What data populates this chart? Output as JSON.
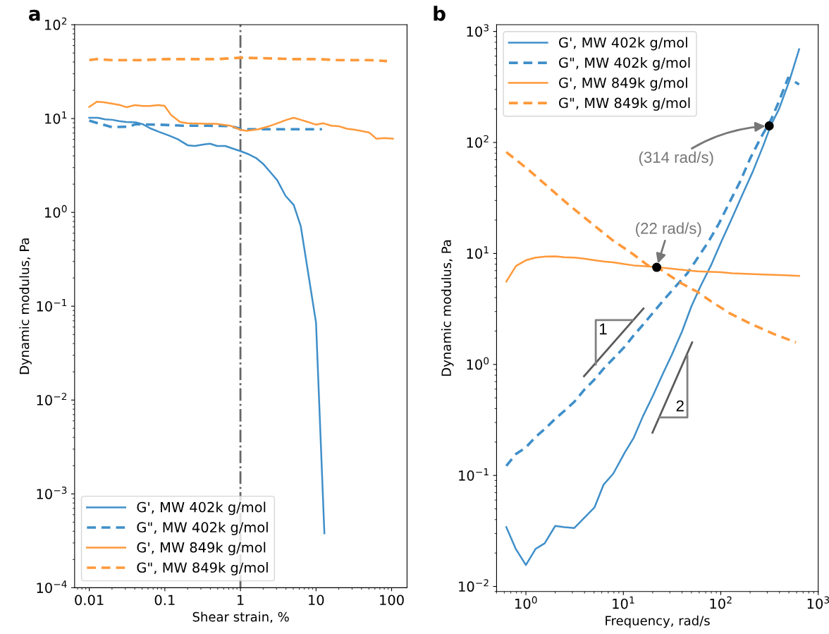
{
  "chart_data": [
    {
      "type": "line",
      "title": "a",
      "xlabel": "Shear strain, %",
      "ylabel": "Dynamic modulus, Pa",
      "log": "xy",
      "legend": "bottom left",
      "grid": false,
      "xlim": [
        0.0064,
        160
      ],
      "xticks": [
        0.01,
        0.1,
        1,
        10,
        100
      ],
      "ylim": [
        0.0001,
        100
      ],
      "yticks": [
        {
          "value": 0.0001,
          "label": "10$^{−4}$"
        },
        {
          "value": 0.001,
          "label": "10$^{−3}$"
        },
        {
          "value": 0.01,
          "label": "10$^{−2}$"
        },
        {
          "value": 0.1,
          "label": "10$^{−1}$"
        },
        {
          "value": 1,
          "label": "10$^{0}$"
        },
        {
          "value": 10,
          "label": "10$^{1}$"
        },
        {
          "value": 100,
          "label": "10$^{2}$"
        }
      ],
      "ref_lines": [
        {
          "axis": "x",
          "value": 1,
          "color": "#666666",
          "line_style": "dashdot"
        }
      ],
      "series": [
        {
          "name": "G', MW 402k g/mol",
          "color": "#3f8fc9",
          "line_style": "solid",
          "x": [
            0.01,
            0.013,
            0.0162,
            0.0201,
            0.0249,
            0.0309,
            0.0412,
            0.0511,
            0.0634,
            0.0845,
            0.113,
            0.15,
            0.2,
            0.248,
            0.331,
            0.396,
            0.491,
            0.631,
            0.783,
            1.0,
            1.25,
            1.61,
            1.99,
            2.47,
            3.07,
            3.95,
            5.07,
            6.29,
            10.0,
            12.9
          ],
          "values": [
            10.2,
            10.2,
            9.8,
            9.7,
            9.4,
            9.2,
            9.1,
            8.7,
            7.9,
            7.2,
            6.6,
            6.0,
            5.2,
            5.1,
            5.3,
            5.4,
            5.1,
            5.1,
            4.8,
            4.5,
            4.2,
            3.8,
            3.3,
            2.7,
            2.2,
            1.5,
            1.2,
            0.71,
            0.067,
            0.00038
          ]
        },
        {
          "name": "G\", MW 402k g/mol",
          "color": "#3f8fc9",
          "line_style": "dashed",
          "x": [
            0.01,
            0.013,
            0.0201,
            0.0332,
            0.0412,
            0.0845,
            0.173,
            0.356,
            0.729,
            1.0,
            1.21,
            3.07,
            12.0
          ],
          "values": [
            9.5,
            8.9,
            8.1,
            8.2,
            8.7,
            8.6,
            8.4,
            8.4,
            8.3,
            7.8,
            7.7,
            7.7,
            7.7
          ]
        },
        {
          "name": "G', MW 849k g/mol",
          "color": "#ff993a",
          "line_style": "solid",
          "x": [
            0.01,
            0.0126,
            0.0156,
            0.0201,
            0.0249,
            0.0313,
            0.0397,
            0.0511,
            0.0634,
            0.0815,
            0.0989,
            0.121,
            0.159,
            0.2,
            0.356,
            0.474,
            0.729,
            1.0,
            1.21,
            1.73,
            2.3,
            3.07,
            4.09,
            5.07,
            6.29,
            7.8,
            10.0,
            12.5,
            16.0,
            19.9,
            25.5,
            32.8,
            50.5,
            62.7,
            80.6,
            104
          ],
          "values": [
            13.3,
            15.1,
            14.9,
            14.4,
            14.0,
            13.2,
            13.9,
            13.6,
            13.6,
            13.9,
            13.7,
            10.9,
            9.2,
            8.9,
            8.8,
            8.8,
            8.4,
            7.6,
            7.4,
            7.7,
            8.2,
            8.9,
            9.7,
            10.2,
            9.7,
            9.2,
            8.6,
            8.9,
            8.4,
            8.3,
            7.8,
            7.6,
            7.1,
            6.1,
            6.2,
            6.1
          ]
        },
        {
          "name": "G\", MW 849k g/mol",
          "color": "#ff993a",
          "line_style": "dashed",
          "x": [
            0.01,
            0.0125,
            0.02,
            0.05,
            0.1,
            0.2,
            0.5,
            0.8,
            1.0,
            2,
            5,
            10,
            20,
            50,
            87
          ],
          "values": [
            42,
            43,
            42,
            42,
            43,
            43,
            43,
            44,
            44.5,
            44,
            43,
            43,
            42,
            42,
            41
          ]
        }
      ]
    },
    {
      "type": "line",
      "title": "b",
      "xlabel": "Frequency, rad/s",
      "ylabel": "Dynamic modulus, Pa",
      "log": "xy",
      "legend": "top left",
      "grid": false,
      "xlim": [
        0.5,
        1000
      ],
      "xticks": [
        {
          "value": 1,
          "label": "10$^{0}$"
        },
        {
          "value": 10,
          "label": "10$^{1}$"
        },
        {
          "value": 100,
          "label": "10$^{2}$"
        },
        {
          "value": 1000,
          "label": "10$^{3}$"
        }
      ],
      "ylim": [
        0.009,
        1150
      ],
      "yticks": [
        {
          "value": 0.01,
          "label": "10$^{−2}$"
        },
        {
          "value": 0.1,
          "label": "10$^{−1}$"
        },
        {
          "value": 1,
          "label": "10$^{0}$"
        },
        {
          "value": 10,
          "label": "10$^{1}$"
        },
        {
          "value": 100,
          "label": "10$^{2}$"
        },
        {
          "value": 1000,
          "label": "10$^{3}$"
        }
      ],
      "annotations": [
        {
          "text": "(22 rad/s)",
          "x": 22,
          "y": 7.5
        },
        {
          "text": "(314 rad/s)",
          "x": 314,
          "y": 141
        },
        "1",
        "2"
      ],
      "series": [
        {
          "name": "G', MW 402k g/mol",
          "color": "#3f8fc9",
          "line_style": "solid",
          "x": [
            0.629,
            0.791,
            1.0,
            1.257,
            1.56,
            2.0,
            2.48,
            3.14,
            3.95,
            5.05,
            6.28,
            7.89,
            10.3,
            12.8,
            15.9,
            20.1,
            25.3,
            31.4,
            40.1,
            49.9,
            61.9,
            79.3,
            101,
            130,
            166,
            213,
            273,
            329,
            396,
            507,
            637
          ],
          "values": [
            0.0342,
            0.0216,
            0.0156,
            0.0218,
            0.0245,
            0.0351,
            0.0342,
            0.0336,
            0.0413,
            0.0514,
            0.0828,
            0.104,
            0.16,
            0.219,
            0.342,
            0.522,
            0.814,
            1.22,
            1.99,
            3.33,
            5.06,
            7.8,
            12.7,
            20.7,
            33.6,
            54.6,
            93.8,
            145,
            200,
            362,
            692
          ]
        },
        {
          "name": "G\", MW 402k g/mol",
          "color": "#3f8fc9",
          "line_style": "dashed",
          "x": [
            0.629,
            0.791,
            1.0,
            1.257,
            1.61,
            2.0,
            2.48,
            3.14,
            3.95,
            5.05,
            6.28,
            7.89,
            10.3,
            12.8,
            15.9,
            20.1,
            25.3,
            31.4,
            45.4,
            58.2,
            74.5,
            95.4,
            122,
            157,
            200,
            257,
            329,
            396,
            491,
            637
          ],
          "values": [
            0.122,
            0.156,
            0.179,
            0.222,
            0.268,
            0.324,
            0.381,
            0.461,
            0.588,
            0.731,
            0.917,
            1.13,
            1.44,
            1.83,
            2.28,
            2.91,
            3.71,
            4.61,
            6.63,
            9.17,
            12.7,
            18.5,
            28.5,
            44.0,
            71.5,
            110,
            161,
            235,
            382,
            333
          ]
        },
        {
          "name": "G', MW 849k g/mol",
          "color": "#ff993a",
          "line_style": "solid",
          "x": [
            0.629,
            0.791,
            1.0,
            1.257,
            1.61,
            2.0,
            2.48,
            3.14,
            3.95,
            5.05,
            6.28,
            7.89,
            10.3,
            12.8,
            15.9,
            22.3,
            31.4,
            42.7,
            58.2,
            79.3,
            101,
            130,
            200,
            273,
            448,
            637
          ],
          "values": [
            5.57,
            7.71,
            8.68,
            9.17,
            9.37,
            9.42,
            9.26,
            9.17,
            8.97,
            8.68,
            8.46,
            8.32,
            8.01,
            7.8,
            7.71,
            7.52,
            7.28,
            7.08,
            6.89,
            6.82,
            6.78,
            6.63,
            6.53,
            6.46,
            6.36,
            6.28
          ]
        },
        {
          "name": "G\", MW 849k g/mol",
          "color": "#ff993a",
          "line_style": "dashed",
          "x": [
            0.629,
            1.04,
            1.71,
            2.81,
            4.61,
            7.55,
            12.4,
            17.9,
            22.3,
            38.9,
            58.2,
            79.3,
            122,
            200,
            350,
            591
          ],
          "values": [
            81.9,
            57.7,
            39.5,
            27.0,
            19.0,
            13.4,
            9.95,
            7.8,
            7.52,
            5.42,
            4.48,
            3.71,
            2.91,
            2.34,
            1.88,
            1.58
          ]
        },
        {
          "type": "scatter",
          "color": "#000000",
          "marker": "circle",
          "x": [
            22,
            314
          ],
          "values": [
            7.5,
            141
          ]
        },
        {
          "color": "#5a5a5a",
          "line_style": "solid",
          "x": [
            3.95,
            16.1
          ],
          "values": [
            0.784,
            3.19
          ]
        },
        {
          "color": "#808080",
          "line_style": "solid",
          "x": [
            5.21,
            5.21,
            12.4
          ],
          "values": [
            1.0,
            2.51,
            2.51
          ]
        },
        {
          "color": "#5a5a5a",
          "line_style": "solid",
          "x": [
            19.9,
            50.8
          ],
          "values": [
            0.243,
            1.58
          ]
        },
        {
          "color": "#808080",
          "line_style": "solid",
          "x": [
            23.7,
            45.4,
            45.4
          ],
          "values": [
            0.333,
            0.333,
            1.2
          ]
        }
      ]
    }
  ]
}
